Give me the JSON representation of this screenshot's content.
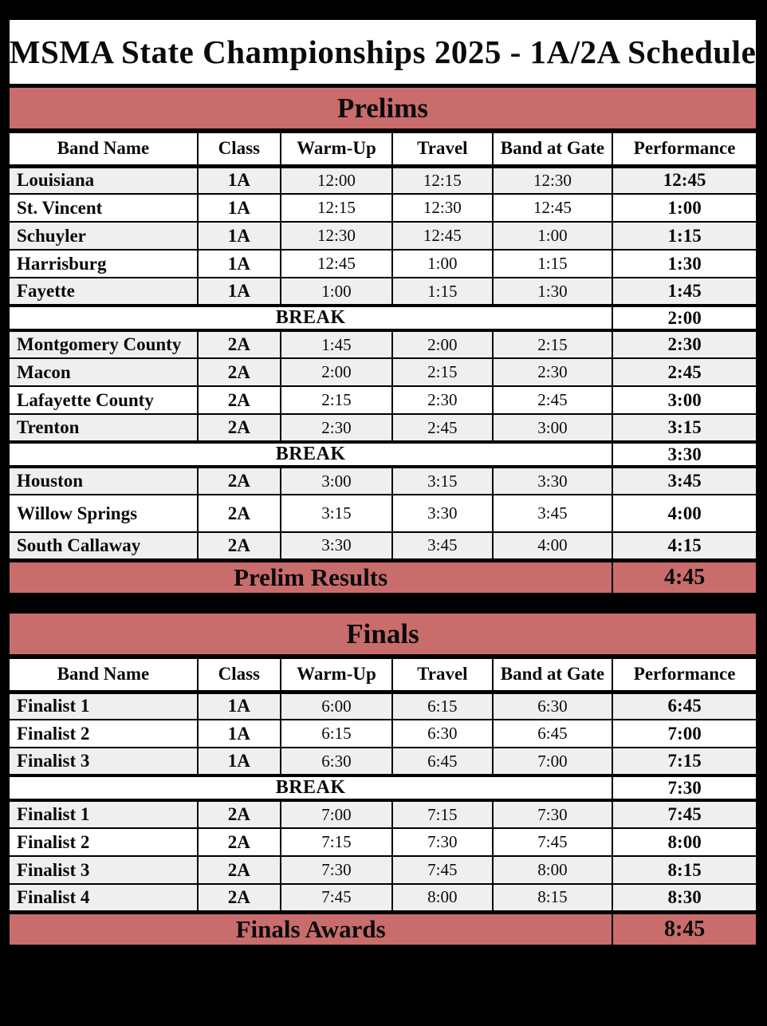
{
  "title": "MSMA State Championships 2025 - 1A/2A Schedule",
  "colors": {
    "accent": "#C96C6C",
    "row_gray": "#EFEFEF",
    "row_white": "#FFFFFF",
    "page_bg": "#000000",
    "text": "#0B0B0B"
  },
  "columns": [
    "Band Name",
    "Class",
    "Warm-Up",
    "Travel",
    "Band at Gate",
    "Performance"
  ],
  "sections": [
    {
      "id": "prelims",
      "title": "Prelims",
      "rows": [
        {
          "type": "band",
          "band": "Louisiana",
          "class": "1A",
          "warm_up": "12:00",
          "travel": "12:15",
          "gate": "12:30",
          "performance": "12:45",
          "shade": "gray"
        },
        {
          "type": "band",
          "band": "St. Vincent",
          "class": "1A",
          "warm_up": "12:15",
          "travel": "12:30",
          "gate": "12:45",
          "performance": "1:00",
          "shade": "white"
        },
        {
          "type": "band",
          "band": "Schuyler",
          "class": "1A",
          "warm_up": "12:30",
          "travel": "12:45",
          "gate": "1:00",
          "performance": "1:15",
          "shade": "gray"
        },
        {
          "type": "band",
          "band": "Harrisburg",
          "class": "1A",
          "warm_up": "12:45",
          "travel": "1:00",
          "gate": "1:15",
          "performance": "1:30",
          "shade": "white"
        },
        {
          "type": "band",
          "band": "Fayette",
          "class": "1A",
          "warm_up": "1:00",
          "travel": "1:15",
          "gate": "1:30",
          "performance": "1:45",
          "shade": "gray"
        },
        {
          "type": "break",
          "label": "BREAK",
          "performance": "2:00"
        },
        {
          "type": "band",
          "band": "Montgomery County",
          "class": "2A",
          "warm_up": "1:45",
          "travel": "2:00",
          "gate": "2:15",
          "performance": "2:30",
          "shade": "gray"
        },
        {
          "type": "band",
          "band": "Macon",
          "class": "2A",
          "warm_up": "2:00",
          "travel": "2:15",
          "gate": "2:30",
          "performance": "2:45",
          "shade": "gray"
        },
        {
          "type": "band",
          "band": "Lafayette County",
          "class": "2A",
          "warm_up": "2:15",
          "travel": "2:30",
          "gate": "2:45",
          "performance": "3:00",
          "shade": "white"
        },
        {
          "type": "band",
          "band": "Trenton",
          "class": "2A",
          "warm_up": "2:30",
          "travel": "2:45",
          "gate": "3:00",
          "performance": "3:15",
          "shade": "gray"
        },
        {
          "type": "break",
          "label": "BREAK",
          "performance": "3:30"
        },
        {
          "type": "band",
          "band": "Houston",
          "class": "2A",
          "warm_up": "3:00",
          "travel": "3:15",
          "gate": "3:30",
          "performance": "3:45",
          "shade": "gray"
        },
        {
          "type": "band",
          "band": "Willow Springs",
          "class": "2A",
          "warm_up": "3:15",
          "travel": "3:30",
          "gate": "3:45",
          "performance": "4:00",
          "shade": "white",
          "tall": true
        },
        {
          "type": "band",
          "band": "South Callaway",
          "class": "2A",
          "warm_up": "3:30",
          "travel": "3:45",
          "gate": "4:00",
          "performance": "4:15",
          "shade": "gray"
        },
        {
          "type": "awards",
          "label": "Prelim Results",
          "performance": "4:45"
        }
      ]
    },
    {
      "id": "finals",
      "title": "Finals",
      "rows": [
        {
          "type": "band",
          "band": "Finalist 1",
          "class": "1A",
          "warm_up": "6:00",
          "travel": "6:15",
          "gate": "6:30",
          "performance": "6:45",
          "shade": "gray"
        },
        {
          "type": "band",
          "band": "Finalist 2",
          "class": "1A",
          "warm_up": "6:15",
          "travel": "6:30",
          "gate": "6:45",
          "performance": "7:00",
          "shade": "white"
        },
        {
          "type": "band",
          "band": "Finalist 3",
          "class": "1A",
          "warm_up": "6:30",
          "travel": "6:45",
          "gate": "7:00",
          "performance": "7:15",
          "shade": "gray"
        },
        {
          "type": "break",
          "label": "BREAK",
          "performance": "7:30"
        },
        {
          "type": "band",
          "band": "Finalist 1",
          "class": "2A",
          "warm_up": "7:00",
          "travel": "7:15",
          "gate": "7:30",
          "performance": "7:45",
          "shade": "gray"
        },
        {
          "type": "band",
          "band": "Finalist 2",
          "class": "2A",
          "warm_up": "7:15",
          "travel": "7:30",
          "gate": "7:45",
          "performance": "8:00",
          "shade": "white"
        },
        {
          "type": "band",
          "band": "Finalist 3",
          "class": "2A",
          "warm_up": "7:30",
          "travel": "7:45",
          "gate": "8:00",
          "performance": "8:15",
          "shade": "gray"
        },
        {
          "type": "band",
          "band": "Finalist 4",
          "class": "2A",
          "warm_up": "7:45",
          "travel": "8:00",
          "gate": "8:15",
          "performance": "8:30",
          "shade": "gray"
        },
        {
          "type": "awards",
          "label": "Finals Awards",
          "performance": "8:45"
        }
      ]
    }
  ]
}
